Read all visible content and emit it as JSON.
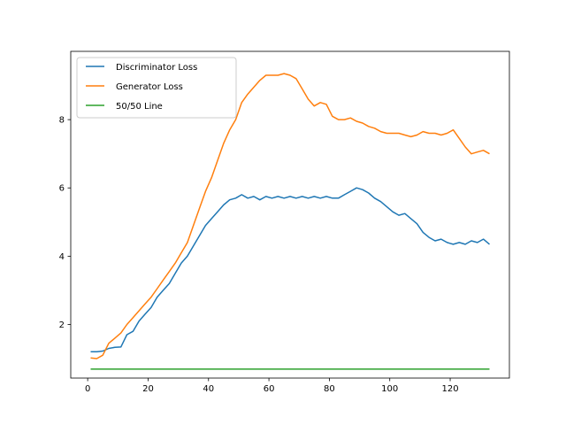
{
  "chart_data": {
    "type": "line",
    "title": "",
    "xlabel": "",
    "ylabel": "",
    "xlim": [
      -5.6,
      139.6
    ],
    "ylim": [
      0.43,
      10.0
    ],
    "xticks": [
      0,
      20,
      40,
      60,
      80,
      100,
      120
    ],
    "yticks": [
      2,
      4,
      6,
      8
    ],
    "grid": false,
    "legend_position": "upper-left",
    "series": [
      {
        "name": "Discriminator Loss",
        "color": "#1f77b4",
        "x": [
          1,
          3,
          5,
          7,
          9,
          11,
          13,
          15,
          17,
          19,
          21,
          23,
          25,
          27,
          29,
          31,
          33,
          35,
          37,
          39,
          41,
          43,
          45,
          47,
          49,
          51,
          53,
          55,
          57,
          59,
          61,
          63,
          65,
          67,
          69,
          71,
          73,
          75,
          77,
          79,
          81,
          83,
          85,
          87,
          89,
          91,
          93,
          95,
          97,
          99,
          101,
          103,
          105,
          107,
          109,
          111,
          113,
          115,
          117,
          119,
          121,
          123,
          125,
          127,
          129,
          131,
          133
        ],
        "values": [
          1.2,
          1.2,
          1.22,
          1.3,
          1.33,
          1.34,
          1.7,
          1.8,
          2.1,
          2.3,
          2.5,
          2.8,
          3.0,
          3.2,
          3.5,
          3.8,
          4.0,
          4.3,
          4.6,
          4.9,
          5.1,
          5.3,
          5.5,
          5.65,
          5.7,
          5.8,
          5.7,
          5.75,
          5.65,
          5.75,
          5.7,
          5.75,
          5.7,
          5.75,
          5.7,
          5.75,
          5.7,
          5.75,
          5.7,
          5.75,
          5.7,
          5.7,
          5.8,
          5.9,
          6.0,
          5.95,
          5.85,
          5.7,
          5.6,
          5.45,
          5.3,
          5.2,
          5.25,
          5.1,
          4.95,
          4.7,
          4.55,
          4.45,
          4.5,
          4.4,
          4.35,
          4.4,
          4.35,
          4.45,
          4.4,
          4.5,
          4.35
        ]
      },
      {
        "name": "Generator Loss",
        "color": "#ff7f0e",
        "x": [
          1,
          3,
          5,
          7,
          9,
          11,
          13,
          15,
          17,
          19,
          21,
          23,
          25,
          27,
          29,
          31,
          33,
          35,
          37,
          39,
          41,
          43,
          45,
          47,
          49,
          51,
          53,
          55,
          57,
          59,
          61,
          63,
          65,
          67,
          69,
          71,
          73,
          75,
          77,
          79,
          81,
          83,
          85,
          87,
          89,
          91,
          93,
          95,
          97,
          99,
          101,
          103,
          105,
          107,
          109,
          111,
          113,
          115,
          117,
          119,
          121,
          123,
          125,
          127,
          129,
          131,
          133
        ],
        "values": [
          1.02,
          1.0,
          1.1,
          1.45,
          1.6,
          1.75,
          2.0,
          2.2,
          2.4,
          2.6,
          2.8,
          3.05,
          3.3,
          3.55,
          3.8,
          4.1,
          4.4,
          4.9,
          5.4,
          5.9,
          6.3,
          6.8,
          7.3,
          7.7,
          8.0,
          8.5,
          8.75,
          8.95,
          9.15,
          9.3,
          9.3,
          9.3,
          9.35,
          9.3,
          9.2,
          8.9,
          8.6,
          8.4,
          8.5,
          8.45,
          8.1,
          8.0,
          8.0,
          8.05,
          7.95,
          7.9,
          7.8,
          7.75,
          7.65,
          7.6,
          7.6,
          7.6,
          7.55,
          7.5,
          7.55,
          7.65,
          7.6,
          7.6,
          7.55,
          7.6,
          7.7,
          7.45,
          7.2,
          7.0,
          7.05,
          7.1,
          7.0
        ]
      },
      {
        "name": "50/50 Line",
        "color": "#2ca02c",
        "x": [
          1,
          133
        ],
        "values": [
          0.693,
          0.693
        ]
      }
    ]
  }
}
